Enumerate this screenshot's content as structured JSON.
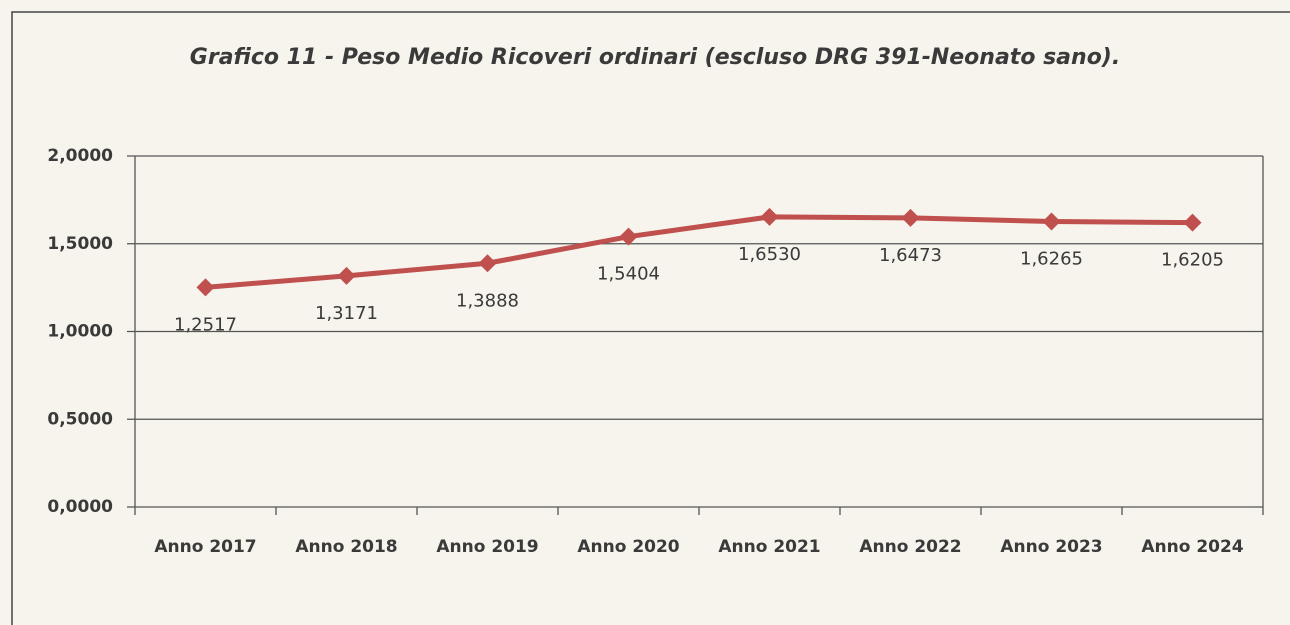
{
  "chart_data": {
    "type": "line",
    "title": "Grafico 11 - Peso Medio Ricoveri ordinari (escluso DRG 391-Neonato sano).",
    "categories": [
      "Anno 2017",
      "Anno 2018",
      "Anno 2019",
      "Anno 2020",
      "Anno 2021",
      "Anno 2022",
      "Anno 2023",
      "Anno 2024"
    ],
    "series": [
      {
        "name": "Peso Medio",
        "color": "#c0504d",
        "values": [
          1.2517,
          1.3171,
          1.3888,
          1.5404,
          1.653,
          1.6473,
          1.6265,
          1.6205
        ],
        "value_labels": [
          "1,2517",
          "1,3171",
          "1,3888",
          "1,5404",
          "1,6530",
          "1,6473",
          "1,6265",
          "1,6205"
        ]
      }
    ],
    "ylim": [
      0,
      2
    ],
    "yticks": [
      {
        "value": 0,
        "label": "0,0000"
      },
      {
        "value": 0.5,
        "label": "0,5000"
      },
      {
        "value": 1,
        "label": "1,0000"
      },
      {
        "value": 1.5,
        "label": "1,5000"
      },
      {
        "value": 2,
        "label": "2,0000"
      }
    ],
    "grid": true
  }
}
